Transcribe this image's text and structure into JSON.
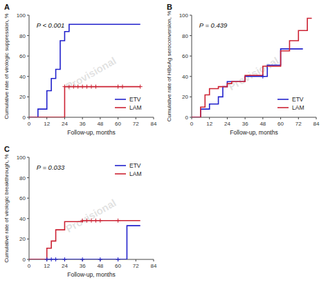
{
  "chart_data": [
    {
      "type": "step",
      "title": "A",
      "xlabel": "Follow-up, months",
      "ylabel": "Cumulative rate of virologic suppression, %",
      "annotations": [
        "P < 0.001",
        "Provisional"
      ],
      "xlim": [
        0,
        84
      ],
      "ylim": [
        0,
        100
      ],
      "xticks": [
        0,
        12,
        24,
        36,
        48,
        60,
        72,
        84
      ],
      "yticks": [
        0,
        20,
        40,
        60,
        80,
        100
      ],
      "legend": "lower right",
      "series": [
        {
          "name": "ETV",
          "color": "#2222CC",
          "x": [
            0,
            6,
            6,
            12,
            12,
            15,
            15,
            18,
            18,
            21,
            21,
            24,
            24,
            27,
            27,
            48,
            48,
            75
          ],
          "values": [
            0,
            0,
            8,
            8,
            26,
            26,
            38,
            38,
            47,
            47,
            75,
            75,
            84,
            84,
            91,
            91,
            91,
            91
          ]
        },
        {
          "name": "LAM",
          "color": "#CC2233",
          "x": [
            0,
            24,
            24,
            75
          ],
          "values": [
            0,
            0,
            30,
            30
          ],
          "censors_x": [
            24,
            27,
            30,
            33,
            36,
            39,
            42,
            45,
            60,
            63,
            75
          ],
          "censors_y": [
            30,
            30,
            30,
            30,
            30,
            30,
            30,
            30,
            30,
            30,
            30
          ]
        }
      ]
    },
    {
      "type": "step",
      "title": "B",
      "xlabel": "Follow-up, months",
      "ylabel": "Cumulative rate of HBeAg seroconversion, %",
      "annotations": [
        "P = 0.439",
        "Provisional"
      ],
      "xlim": [
        0,
        84
      ],
      "ylim": [
        0,
        100
      ],
      "xticks": [
        0,
        12,
        24,
        36,
        48,
        60,
        72,
        84
      ],
      "yticks": [
        0,
        20,
        40,
        60,
        80,
        100
      ],
      "legend": "lower right",
      "series": [
        {
          "name": "ETV",
          "color": "#2222CC",
          "x": [
            0,
            6,
            6,
            12,
            12,
            18,
            18,
            21,
            21,
            24,
            24,
            36,
            36,
            48,
            48,
            51,
            51,
            60,
            60,
            63,
            63,
            72,
            72,
            75
          ],
          "values": [
            0,
            0,
            8,
            8,
            13,
            13,
            20,
            20,
            30,
            30,
            35,
            35,
            40,
            40,
            40,
            40,
            51,
            51,
            67,
            67,
            67,
            67,
            67,
            67
          ],
          "censors_x": [
            48
          ],
          "censors_y": [
            40
          ]
        },
        {
          "name": "LAM",
          "color": "#CC2233",
          "x": [
            0,
            6,
            6,
            9,
            9,
            12,
            12,
            18,
            18,
            24,
            24,
            27,
            27,
            36,
            36,
            48,
            48,
            60,
            60,
            66,
            66,
            72,
            72,
            78,
            78,
            81
          ],
          "values": [
            0,
            0,
            10,
            10,
            22,
            22,
            28,
            28,
            30,
            30,
            33,
            33,
            35,
            35,
            41,
            41,
            50,
            50,
            65,
            65,
            75,
            75,
            85,
            85,
            97,
            97
          ]
        }
      ]
    },
    {
      "type": "step",
      "title": "C",
      "xlabel": "Follow-up, months",
      "ylabel": "Cumulative rate of virologic breakthrough, %",
      "annotations": [
        "P = 0.033",
        "Provisional"
      ],
      "xlim": [
        0,
        84
      ],
      "ylim": [
        0,
        100
      ],
      "xticks": [
        0,
        12,
        24,
        36,
        48,
        60,
        72,
        84
      ],
      "yticks": [
        0,
        20,
        40,
        60,
        80,
        100
      ],
      "legend": "upper right",
      "series": [
        {
          "name": "ETV",
          "color": "#2222CC",
          "x": [
            0,
            66,
            66,
            75
          ],
          "values": [
            0,
            0,
            33,
            33
          ],
          "censors_x": [
            12,
            15,
            18,
            24,
            36,
            48,
            60
          ],
          "censors_y": [
            0,
            0,
            0,
            0,
            0,
            0,
            0
          ]
        },
        {
          "name": "LAM",
          "color": "#CC2233",
          "x": [
            0,
            12,
            12,
            15,
            15,
            18,
            18,
            24,
            24,
            36,
            36,
            75
          ],
          "values": [
            0,
            0,
            11,
            11,
            18,
            18,
            29,
            29,
            37,
            37,
            38,
            38
          ],
          "censors_x": [
            36,
            39,
            42,
            45,
            48,
            60
          ],
          "censors_y": [
            38,
            38,
            38,
            38,
            38,
            38
          ]
        }
      ]
    }
  ]
}
